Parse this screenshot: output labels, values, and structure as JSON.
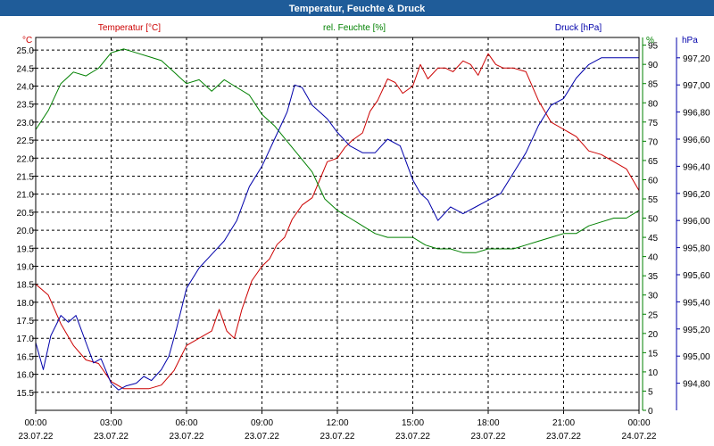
{
  "window": {
    "title": "Temperatur, Feuchte & Druck"
  },
  "colors": {
    "temperature": "#cc0000",
    "humidity": "#008000",
    "pressure": "#0000aa",
    "titlebar": "#1f5c99"
  },
  "chart_data": {
    "type": "line",
    "title": "Temperatur, Feuchte & Druck",
    "x_unit": "hours since 23.07.22 00:00",
    "x_ticks": [
      {
        "x": 0,
        "time": "00:00",
        "date": "23.07.22"
      },
      {
        "x": 3,
        "time": "03:00",
        "date": "23.07.22"
      },
      {
        "x": 6,
        "time": "06:00",
        "date": "23.07.22"
      },
      {
        "x": 9,
        "time": "09:00",
        "date": "23.07.22"
      },
      {
        "x": 12,
        "time": "12:00",
        "date": "23.07.22"
      },
      {
        "x": 15,
        "time": "15:00",
        "date": "23.07.22"
      },
      {
        "x": 18,
        "time": "18:00",
        "date": "23.07.22"
      },
      {
        "x": 21,
        "time": "21:00",
        "date": "23.07.22"
      },
      {
        "x": 24,
        "time": "00:00",
        "date": "24.07.22"
      }
    ],
    "xlim": [
      0,
      24
    ],
    "axes": {
      "temperature": {
        "label": "Temperatur [°C]",
        "unit": "°C",
        "ylim": [
          15.0,
          25.35
        ],
        "ticks": [
          "15.5",
          "16.0",
          "16.5",
          "17.0",
          "17.5",
          "18.0",
          "18.5",
          "19.0",
          "19.5",
          "20.0",
          "20.5",
          "21.0",
          "21.5",
          "22.0",
          "22.5",
          "23.0",
          "23.5",
          "24.0",
          "24.5",
          "25.0"
        ]
      },
      "humidity": {
        "label": "rel. Feuchte [%]",
        "unit": "%",
        "ylim": [
          0,
          97
        ],
        "ticks": [
          "0",
          "5",
          "10",
          "15",
          "20",
          "25",
          "30",
          "35",
          "40",
          "45",
          "50",
          "55",
          "60",
          "65",
          "70",
          "75",
          "80",
          "85",
          "90",
          "95"
        ]
      },
      "pressure": {
        "label": "Druck [hPa]",
        "unit": "hPa",
        "ylim": [
          994.6,
          997.35
        ],
        "ticks": [
          "994,80",
          "995,00",
          "995,20",
          "995,40",
          "995,60",
          "995,80",
          "996,00",
          "996,20",
          "996,40",
          "996,60",
          "996,80",
          "997,00",
          "997,20"
        ]
      }
    },
    "series": [
      {
        "name": "Temperatur [°C]",
        "axis": "temperature",
        "color": "#cc0000",
        "x": [
          0,
          0.5,
          1,
          1.5,
          2,
          2.5,
          3,
          3.5,
          4,
          4.5,
          5,
          5.5,
          6,
          6.5,
          7,
          7.3,
          7.6,
          7.9,
          8.2,
          8.6,
          9,
          9.3,
          9.6,
          9.9,
          10.2,
          10.6,
          11,
          11.3,
          11.6,
          12,
          12.3,
          12.6,
          13,
          13.3,
          13.6,
          14,
          14.3,
          14.6,
          15,
          15.3,
          15.6,
          16,
          16.3,
          16.6,
          17,
          17.3,
          17.6,
          18,
          18.3,
          18.6,
          19,
          19.5,
          20,
          20.5,
          21,
          21.5,
          22,
          22.5,
          23,
          23.5,
          24
        ],
        "y": [
          18.5,
          18.2,
          17.4,
          16.8,
          16.4,
          16.3,
          15.8,
          15.6,
          15.6,
          15.6,
          15.7,
          16.1,
          16.8,
          17.0,
          17.2,
          17.8,
          17.2,
          17.0,
          17.8,
          18.6,
          19.0,
          19.2,
          19.6,
          19.8,
          20.3,
          20.7,
          20.9,
          21.4,
          21.9,
          22.0,
          22.3,
          22.5,
          22.7,
          23.3,
          23.6,
          24.2,
          24.1,
          23.8,
          24.0,
          24.6,
          24.2,
          24.5,
          24.5,
          24.4,
          24.7,
          24.6,
          24.3,
          24.9,
          24.6,
          24.5,
          24.5,
          24.4,
          23.6,
          23.0,
          22.8,
          22.6,
          22.2,
          22.1,
          21.9,
          21.7,
          21.1
        ]
      },
      {
        "name": "rel. Feuchte [%]",
        "axis": "humidity",
        "color": "#008000",
        "x": [
          0,
          0.5,
          1,
          1.5,
          2,
          2.5,
          3,
          3.5,
          4,
          4.5,
          5,
          5.5,
          6,
          6.5,
          7,
          7.5,
          8,
          8.5,
          9,
          9.5,
          10,
          10.5,
          11,
          11.5,
          12,
          12.5,
          13,
          13.5,
          14,
          14.5,
          15,
          15.5,
          16,
          16.5,
          17,
          17.5,
          18,
          18.5,
          19,
          19.5,
          20,
          20.5,
          21,
          21.5,
          22,
          22.5,
          23,
          23.5,
          24
        ],
        "y": [
          73,
          78,
          85,
          88,
          87,
          89,
          93,
          94,
          93,
          92,
          91,
          88,
          85,
          86,
          83,
          86,
          84,
          82,
          77,
          74,
          70,
          66,
          62,
          55,
          52,
          50,
          48,
          46,
          45,
          45,
          45,
          43,
          42,
          42,
          41,
          41,
          42,
          42,
          42,
          43,
          44,
          45,
          46,
          46,
          48,
          49,
          50,
          50,
          52
        ]
      },
      {
        "name": "Druck [hPa]",
        "axis": "pressure",
        "color": "#0000aa",
        "x": [
          0,
          0.3,
          0.6,
          1,
          1.3,
          1.6,
          2,
          2.3,
          2.6,
          3,
          3.3,
          3.6,
          4,
          4.3,
          4.6,
          5,
          5.3,
          5.6,
          6,
          6.5,
          7,
          7.5,
          8,
          8.5,
          9,
          9.5,
          10,
          10.3,
          10.6,
          11,
          11.3,
          11.6,
          12,
          12.5,
          13,
          13.5,
          14,
          14.5,
          15,
          15.3,
          15.6,
          16,
          16.5,
          17,
          17.5,
          18,
          18.5,
          19,
          19.5,
          20,
          20.5,
          21,
          21.5,
          22,
          22.5,
          23,
          23.5,
          24
        ],
        "y": [
          995.1,
          994.9,
          995.15,
          995.3,
          995.25,
          995.3,
          995.1,
          994.95,
          994.98,
          994.8,
          994.75,
          994.78,
          994.8,
          994.85,
          994.82,
          994.9,
          995.0,
          995.2,
          995.5,
          995.65,
          995.75,
          995.85,
          996.0,
          996.25,
          996.4,
          996.6,
          996.8,
          997.0,
          996.98,
          996.85,
          996.8,
          996.75,
          996.65,
          996.55,
          996.5,
          996.5,
          996.6,
          996.55,
          996.3,
          996.2,
          996.15,
          996.0,
          996.1,
          996.05,
          996.1,
          996.15,
          996.2,
          996.35,
          996.5,
          996.7,
          996.85,
          996.9,
          997.05,
          997.15,
          997.2,
          997.2,
          997.2,
          997.2
        ]
      }
    ]
  }
}
